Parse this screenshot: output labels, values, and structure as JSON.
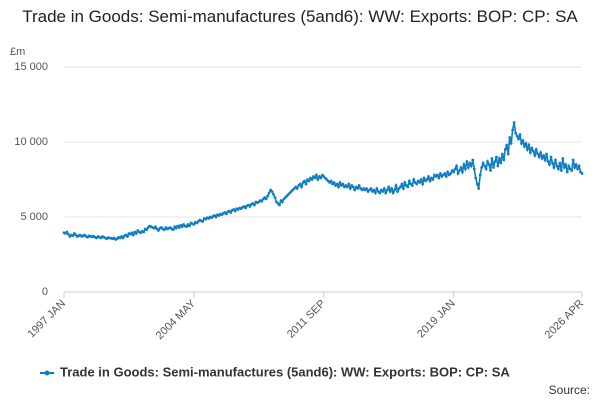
{
  "chart_data": {
    "type": "line",
    "title": "Trade in Goods: Semi-manufactures (5and6): WW: Exports: BOP: CP: SA",
    "y_label": "£m",
    "source": "Source:",
    "categories": [
      "1997 JAN",
      null,
      null,
      null,
      null,
      null,
      null,
      null,
      null,
      null,
      null,
      null,
      null,
      null,
      null,
      null,
      null,
      null,
      null,
      null,
      null,
      null,
      null,
      null,
      null,
      null,
      null,
      null,
      null,
      null,
      null,
      null,
      null,
      null,
      null,
      null,
      null,
      null,
      null,
      null,
      null,
      null,
      null,
      null,
      null,
      null,
      null,
      null,
      null,
      null,
      null,
      null,
      null,
      null,
      null,
      null,
      null,
      null,
      null,
      null,
      null,
      null,
      null,
      null,
      null,
      null,
      null,
      null,
      null,
      null,
      null,
      null,
      null,
      null,
      null,
      null,
      null,
      null,
      null,
      null,
      null,
      null,
      null,
      null,
      null,
      null,
      null,
      null,
      "2004 MAY",
      null,
      null,
      null,
      null,
      null,
      null,
      null,
      null,
      null,
      null,
      null,
      null,
      null,
      null,
      null,
      null,
      null,
      null,
      null,
      null,
      null,
      null,
      null,
      null,
      null,
      null,
      null,
      null,
      null,
      null,
      null,
      null,
      null,
      null,
      null,
      null,
      null,
      null,
      null,
      null,
      null,
      null,
      null,
      null,
      null,
      null,
      null,
      null,
      null,
      null,
      null,
      null,
      null,
      null,
      null,
      null,
      null,
      null,
      null,
      null,
      null,
      null,
      null,
      null,
      null,
      null,
      null,
      null,
      null,
      null,
      null,
      null,
      null,
      null,
      null,
      null,
      null,
      null,
      null,
      null,
      null,
      null,
      null,
      null,
      null,
      null,
      null,
      "2011 SEP",
      null,
      null,
      null,
      null,
      null,
      null,
      null,
      null,
      null,
      null,
      null,
      null,
      null,
      null,
      null,
      null,
      null,
      null,
      null,
      null,
      null,
      null,
      null,
      null,
      null,
      null,
      null,
      null,
      null,
      null,
      null,
      null,
      null,
      null,
      null,
      null,
      null,
      null,
      null,
      null,
      null,
      null,
      null,
      null,
      null,
      null,
      null,
      null,
      null,
      null,
      null,
      null,
      null,
      null,
      null,
      null,
      null,
      null,
      null,
      null,
      null,
      null,
      null,
      null,
      null,
      null,
      null,
      null,
      null,
      null,
      null,
      null,
      null,
      null,
      null,
      null,
      null,
      null,
      null,
      null,
      null,
      null,
      null,
      null,
      null,
      null,
      null,
      "2019 JAN",
      null,
      null,
      null,
      null,
      null,
      null,
      null,
      null,
      null,
      null,
      null,
      null,
      null,
      null,
      null,
      null,
      null,
      null,
      null,
      null,
      null,
      null,
      null,
      null,
      null,
      null,
      null,
      null,
      null,
      null,
      null,
      null,
      null,
      null,
      null,
      null,
      null,
      null,
      null,
      null,
      null,
      null,
      null,
      null,
      null,
      null,
      null,
      null,
      null,
      null,
      null,
      null,
      null,
      null,
      null,
      null,
      null,
      null,
      null,
      null,
      null,
      null,
      null,
      null,
      null,
      null,
      null,
      null,
      null,
      null,
      null,
      null,
      null,
      null,
      null,
      null,
      null,
      null,
      null,
      null,
      null,
      null,
      null,
      null,
      null,
      null,
      "2026 APR"
    ],
    "series": [
      {
        "name": "Trade in Goods: Semi-manufactures (5and6): WW: Exports: BOP: CP: SA",
        "color": "#0f7dc2",
        "values": [
          3950,
          3900,
          4000,
          3850,
          3700,
          3800,
          3750,
          3900,
          3800,
          3700,
          3750,
          3800,
          3700,
          3750,
          3800,
          3700,
          3650,
          3750,
          3700,
          3680,
          3720,
          3650,
          3600,
          3700,
          3650,
          3600,
          3700,
          3650,
          3600,
          3550,
          3620,
          3600,
          3580,
          3550,
          3600,
          3500,
          3550,
          3650,
          3600,
          3700,
          3600,
          3750,
          3800,
          3700,
          3900,
          3850,
          3950,
          3800,
          4000,
          3900,
          4100,
          4000,
          3950,
          4050,
          4000,
          4200,
          4150,
          4300,
          4400,
          4350,
          4300,
          4250,
          4350,
          4200,
          4100,
          4250,
          4300,
          4200,
          4150,
          4300,
          4200,
          4250,
          4300,
          4200,
          4150,
          4350,
          4250,
          4400,
          4300,
          4450,
          4350,
          4500,
          4400,
          4350,
          4500,
          4400,
          4600,
          4550,
          4500,
          4650,
          4600,
          4700,
          4800,
          4750,
          4700,
          4900,
          4850,
          4950,
          4900,
          5000,
          4950,
          5050,
          5100,
          5000,
          5150,
          5100,
          5200,
          5150,
          5250,
          5300,
          5200,
          5350,
          5400,
          5300,
          5450,
          5500,
          5400,
          5550,
          5500,
          5600,
          5550,
          5650,
          5700,
          5600,
          5750,
          5800,
          5700,
          5850,
          5900,
          5800,
          6000,
          5950,
          6000,
          6100,
          6050,
          6200,
          6300,
          6200,
          6400,
          6600,
          6800,
          6700,
          6500,
          6300,
          6000,
          5900,
          5800,
          6100,
          6000,
          6200,
          6300,
          6400,
          6500,
          6600,
          6700,
          6800,
          6900,
          7000,
          6900,
          7100,
          7200,
          7000,
          7300,
          7400,
          7200,
          7500,
          7400,
          7600,
          7500,
          7700,
          7600,
          7800,
          7500,
          7700,
          7600,
          7800,
          7700,
          7600,
          7500,
          7400,
          7300,
          7400,
          7200,
          7300,
          7100,
          7200,
          7000,
          7300,
          7100,
          7200,
          7000,
          7100,
          7000,
          7200,
          6900,
          7100,
          7000,
          6800,
          7000,
          6900,
          7100,
          6900,
          6800,
          6900,
          6800,
          6900,
          6700,
          6800,
          6900,
          6700,
          6800,
          6600,
          6900,
          6700,
          6600,
          6800,
          6700,
          6900,
          6600,
          6800,
          7000,
          6700,
          6900,
          6600,
          6800,
          7100,
          6700,
          6900,
          7000,
          7200,
          6900,
          7300,
          7100,
          7000,
          7400,
          7200,
          7100,
          7500,
          7300,
          7200,
          7400,
          7300,
          7500,
          7200,
          7600,
          7400,
          7500,
          7700,
          7400,
          7600,
          7500,
          7800,
          7700,
          7800,
          7600,
          7900,
          7700,
          7800,
          7900,
          7700,
          8000,
          7800,
          7900,
          8100,
          8000,
          8200,
          8400,
          7900,
          8100,
          8300,
          8000,
          8500,
          8200,
          8700,
          8300,
          8600,
          8400,
          8800,
          8200,
          7600,
          7200,
          6900,
          7800,
          8300,
          8600,
          8400,
          8200,
          8700,
          8500,
          8100,
          8900,
          8300,
          8700,
          9000,
          8400,
          8900,
          8600,
          9200,
          8800,
          9500,
          9800,
          9200,
          10300,
          9900,
          10800,
          11300,
          10600,
          10400,
          10200,
          10500,
          9900,
          10100,
          9700,
          9900,
          9500,
          9800,
          9300,
          9600,
          9400,
          9100,
          9500,
          9200,
          9000,
          9300,
          8900,
          9100,
          8800,
          9200,
          8700,
          8500,
          9000,
          8600,
          8300,
          8800,
          8400,
          8200,
          8600,
          8100,
          8900,
          8300,
          8500,
          8000,
          8400,
          8200,
          8100,
          8800,
          8300,
          8500,
          8200,
          8400,
          8000,
          7900
        ]
      }
    ],
    "ylim": [
      0,
      15000
    ],
    "yticks": [
      0,
      {
        "value": 5000,
        "label": "5 000"
      },
      {
        "value": 10000,
        "label": "10 000"
      },
      {
        "value": 15000,
        "label": "15 000"
      }
    ],
    "grid": true,
    "legend": "bottom"
  }
}
